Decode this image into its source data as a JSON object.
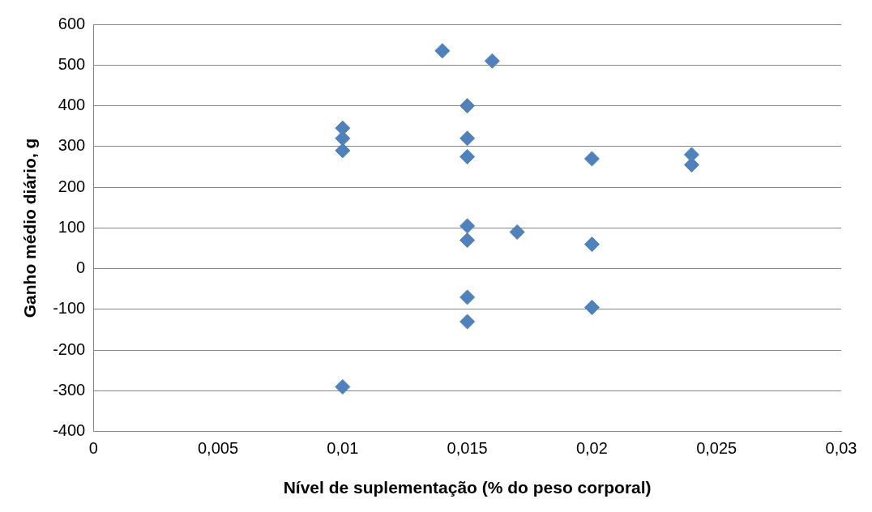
{
  "chart_data": {
    "type": "scatter",
    "xlabel": "Nível de suplementação (% do peso corporal)",
    "ylabel": "Ganho médio diário, g",
    "series": [
      {
        "color": "#4f81bd",
        "x": [
          0.01,
          0.01,
          0.01,
          0.01,
          0.014,
          0.016,
          0.015,
          0.015,
          0.015,
          0.015,
          0.015,
          0.015,
          0.015,
          0.017,
          0.02,
          0.02,
          0.02,
          0.024,
          0.024
        ],
        "values": [
          345,
          320,
          290,
          -290,
          535,
          510,
          400,
          320,
          275,
          105,
          70,
          -70,
          -130,
          90,
          270,
          60,
          -95,
          280,
          255
        ]
      }
    ],
    "xlim": [
      0,
      0.03
    ],
    "xticks": [
      0,
      {
        "value": 0.005,
        "label": "0,005"
      },
      {
        "value": 0.01,
        "label": "0,01"
      },
      {
        "value": 0.015,
        "label": "0,015"
      },
      {
        "value": 0.02,
        "label": "0,02"
      },
      {
        "value": 0.025,
        "label": "0,025"
      },
      {
        "value": 0.03,
        "label": "0,03"
      }
    ],
    "ylim": [
      -400,
      600
    ],
    "yticks": [
      -400,
      -300,
      -200,
      -100,
      0,
      100,
      200,
      300,
      400,
      500,
      600
    ],
    "grid": "y",
    "legend": false,
    "marker": "diamond"
  }
}
